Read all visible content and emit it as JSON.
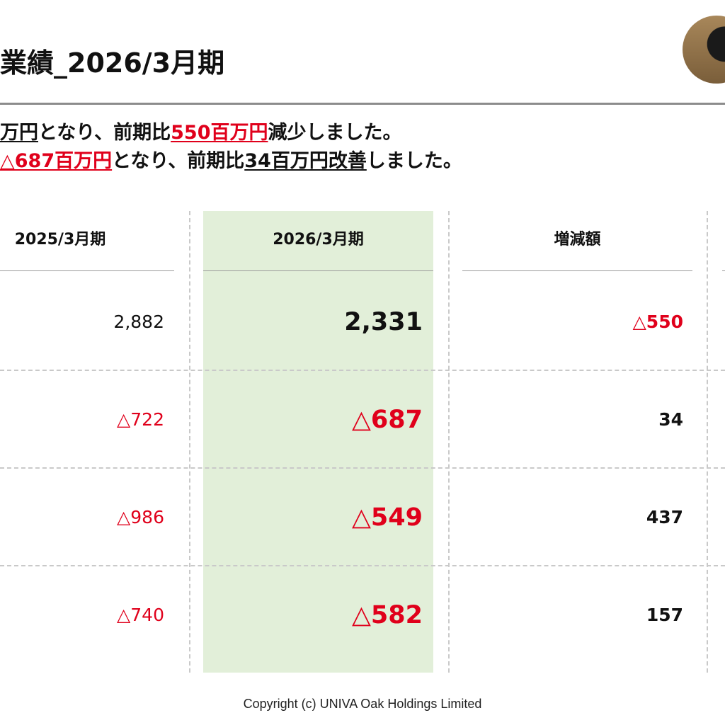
{
  "title": "業績_2026/3月期",
  "summary": {
    "line1": [
      {
        "text": "万円",
        "style": "und"
      },
      {
        "text": "となり、前期比",
        "style": ""
      },
      {
        "text": "550百万円",
        "style": "red"
      },
      {
        "text": "減少しました。",
        "style": ""
      }
    ],
    "line2": [
      {
        "text": "△687百万円",
        "style": "red"
      },
      {
        "text": "となり、前期比",
        "style": ""
      },
      {
        "text": "34百万円改善",
        "style": "und"
      },
      {
        "text": "しました。",
        "style": ""
      }
    ]
  },
  "table": {
    "columns": {
      "prev": "2025/3月期",
      "curr": "2026/3月期",
      "diff": "増減額"
    },
    "rows": [
      {
        "prev": "2,882",
        "curr": "2,331",
        "diff": "△550"
      },
      {
        "prev": "△722",
        "curr": "△687",
        "diff": "34"
      },
      {
        "prev": "△986",
        "curr": "△549",
        "diff": "437"
      },
      {
        "prev": "△740",
        "curr": "△582",
        "diff": "157"
      }
    ]
  },
  "colors": {
    "negative": "#e0001b",
    "highlight": "#e2efd9",
    "rule": "#8c8c8c"
  },
  "footer": "Copyright (c) UNIVA Oak Holdings Limited"
}
